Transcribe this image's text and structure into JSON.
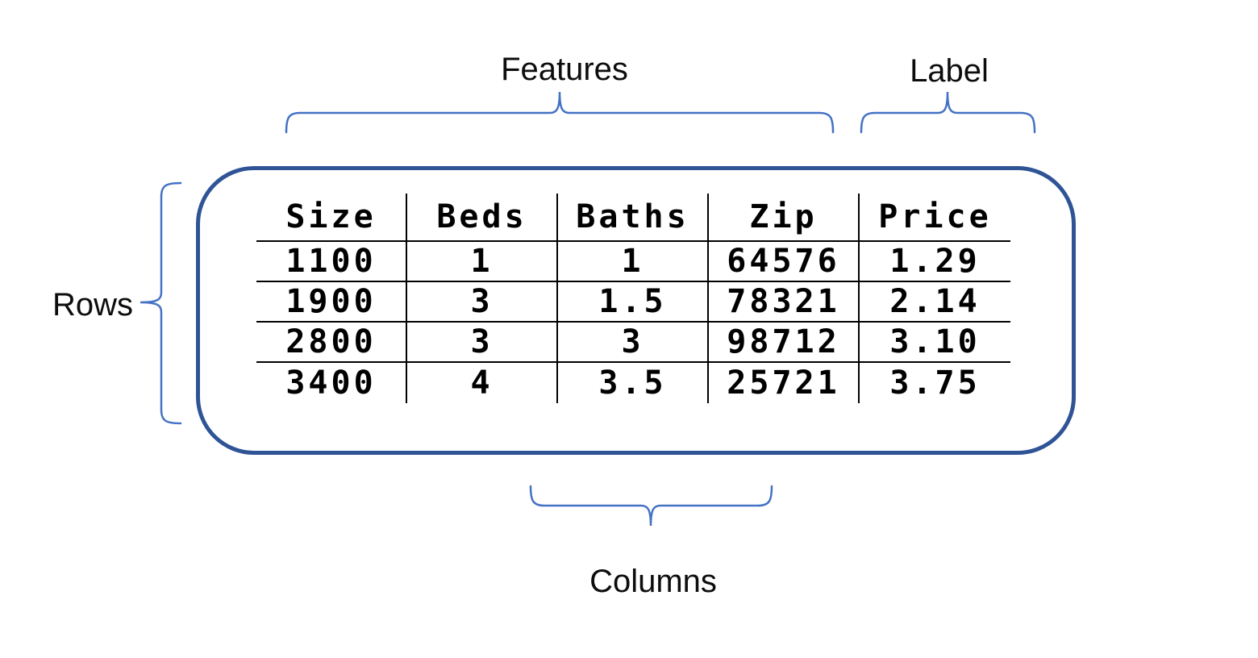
{
  "annotations": {
    "features": "Features",
    "label": "Label",
    "rows": "Rows",
    "columns": "Columns"
  },
  "table": {
    "headers": [
      "Size",
      "Beds",
      "Baths",
      "Zip",
      "Price"
    ],
    "rows": [
      [
        "1100",
        "1",
        "1",
        "64576",
        "1.29"
      ],
      [
        "1900",
        "3",
        "1.5",
        "78321",
        "2.14"
      ],
      [
        "2800",
        "3",
        "3",
        "98712",
        "3.10"
      ],
      [
        "3400",
        "4",
        "3.5",
        "25721",
        "3.75"
      ]
    ]
  },
  "colors": {
    "brace": "#4472C4",
    "box_border": "#2F5496",
    "table_line": "#000000",
    "text": "#0d0d0d"
  }
}
